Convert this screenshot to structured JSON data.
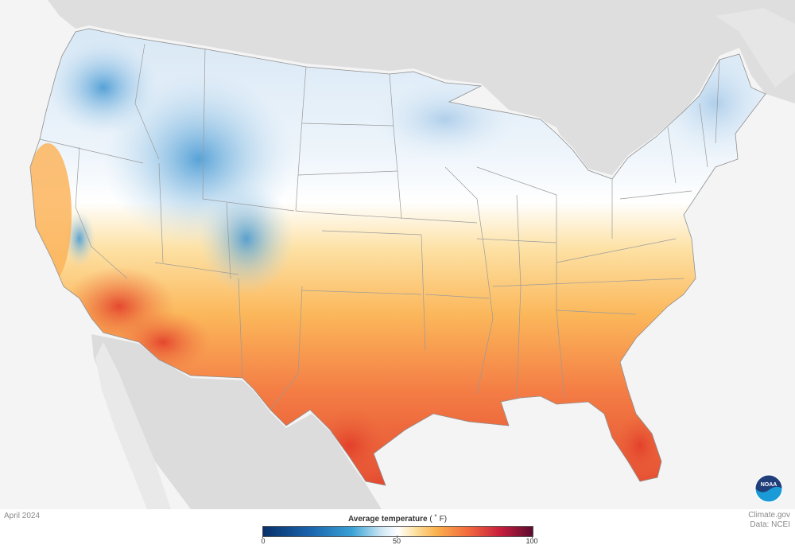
{
  "map": {
    "title": "Average temperature",
    "unit": "( ˚ F)",
    "period": "April 2024",
    "credit_line1": "Climate.gov",
    "credit_line2": "Data: NCEI",
    "legend_ticks": [
      "0",
      "50",
      "100"
    ],
    "legend_range": [
      0,
      100
    ],
    "colors": {
      "ocean": "#f4f4f4",
      "land_neighbors": "#dcdcdc",
      "cold": "#3a8fd0",
      "cool": "#cfe3f3",
      "neutral": "#ffffff",
      "warm": "#fbbd63",
      "hot": "#ef5e3a",
      "hottest": "#d23a2a",
      "borders": "#9a9a9a"
    },
    "logo": {
      "name": "noaa-logo",
      "text": "NOAA"
    }
  }
}
